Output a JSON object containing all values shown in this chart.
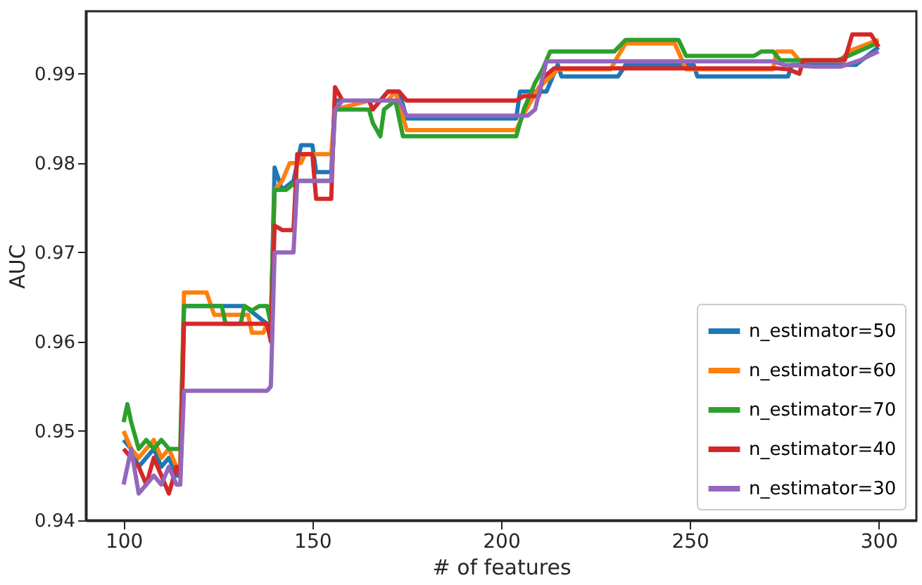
{
  "chart_data": {
    "type": "line",
    "xlabel": "# of features",
    "ylabel": "AUC",
    "xlim": [
      90,
      310
    ],
    "ylim": [
      0.94,
      0.997
    ],
    "xticks": [
      100,
      150,
      200,
      250,
      300
    ],
    "yticks": [
      0.94,
      0.95,
      0.96,
      0.97,
      0.98,
      0.99
    ],
    "grid": false,
    "legend": "bottom right",
    "marker": "none",
    "line_style": "solid",
    "series": [
      {
        "name": "n_estimator=50",
        "color": "#1f77b4",
        "x": [
          100,
          102,
          104,
          106,
          108,
          110,
          112,
          114,
          115,
          116,
          132,
          135,
          138,
          139,
          140,
          142,
          145,
          147,
          150,
          151,
          155,
          156,
          168,
          170,
          173,
          175,
          204,
          205,
          212,
          215,
          216,
          231,
          233,
          251,
          252,
          276,
          277,
          294,
          300
        ],
        "values": [
          0.949,
          0.948,
          0.946,
          0.947,
          0.948,
          0.946,
          0.947,
          0.945,
          0.945,
          0.964,
          0.964,
          0.963,
          0.962,
          0.962,
          0.9795,
          0.977,
          0.978,
          0.982,
          0.982,
          0.979,
          0.979,
          0.987,
          0.987,
          0.988,
          0.988,
          0.985,
          0.985,
          0.988,
          0.988,
          0.991,
          0.9897,
          0.9897,
          0.991,
          0.991,
          0.9897,
          0.9897,
          0.991,
          0.991,
          0.993
        ]
      },
      {
        "name": "n_estimator=60",
        "color": "#ff7f0e",
        "x": [
          100,
          102,
          104,
          106,
          108,
          110,
          112,
          114,
          115,
          116,
          122,
          124,
          133,
          134,
          137,
          138,
          139,
          140,
          142,
          144,
          147,
          148,
          155,
          156,
          165,
          170,
          172,
          175,
          204,
          206,
          210,
          214,
          215,
          229,
          231,
          233,
          246,
          249,
          272,
          273,
          277,
          279,
          290,
          292,
          300
        ],
        "values": [
          0.95,
          0.948,
          0.947,
          0.948,
          0.949,
          0.947,
          0.948,
          0.946,
          0.946,
          0.9655,
          0.9655,
          0.963,
          0.963,
          0.961,
          0.961,
          0.962,
          0.962,
          0.977,
          0.978,
          0.98,
          0.98,
          0.981,
          0.981,
          0.986,
          0.987,
          0.987,
          0.988,
          0.9837,
          0.9837,
          0.9855,
          0.9885,
          0.99,
          0.9905,
          0.9905,
          0.992,
          0.9934,
          0.9934,
          0.9905,
          0.9905,
          0.9925,
          0.9925,
          0.9915,
          0.9915,
          0.9925,
          0.9938
        ]
      },
      {
        "name": "n_estimator=70",
        "color": "#2ca02c",
        "x": [
          100,
          101,
          102,
          104,
          106,
          108,
          110,
          112,
          115,
          116,
          126,
          127,
          131,
          132,
          134,
          136,
          138,
          139,
          140,
          143,
          146,
          155,
          156,
          165,
          166,
          168,
          169,
          172,
          174,
          204,
          206,
          209,
          211,
          213,
          230,
          233,
          247,
          249,
          267,
          269,
          272,
          274,
          289,
          292,
          300
        ],
        "values": [
          0.951,
          0.953,
          0.951,
          0.948,
          0.949,
          0.948,
          0.949,
          0.948,
          0.948,
          0.964,
          0.964,
          0.962,
          0.962,
          0.964,
          0.9635,
          0.964,
          0.964,
          0.962,
          0.977,
          0.977,
          0.978,
          0.978,
          0.986,
          0.986,
          0.9845,
          0.983,
          0.986,
          0.987,
          0.983,
          0.983,
          0.986,
          0.989,
          0.9905,
          0.9925,
          0.9925,
          0.9938,
          0.9938,
          0.992,
          0.992,
          0.9925,
          0.9925,
          0.9915,
          0.9915,
          0.992,
          0.9935
        ]
      },
      {
        "name": "n_estimator=40",
        "color": "#d62728",
        "x": [
          100,
          102,
          104,
          106,
          108,
          110,
          112,
          114,
          115,
          116,
          138,
          139,
          140,
          142,
          145,
          146,
          150,
          151,
          155,
          156,
          158,
          165,
          166,
          170,
          173,
          175,
          204,
          206,
          210,
          211,
          214,
          273,
          276,
          279,
          280,
          291,
          293,
          298,
          300
        ],
        "values": [
          0.948,
          0.947,
          0.946,
          0.944,
          0.947,
          0.945,
          0.943,
          0.946,
          0.945,
          0.962,
          0.962,
          0.96,
          0.973,
          0.9725,
          0.9725,
          0.981,
          0.981,
          0.976,
          0.976,
          0.9885,
          0.987,
          0.987,
          0.986,
          0.988,
          0.988,
          0.987,
          0.987,
          0.9875,
          0.9875,
          0.9895,
          0.9906,
          0.9906,
          0.9905,
          0.99,
          0.9915,
          0.9915,
          0.9944,
          0.9944,
          0.993
        ]
      },
      {
        "name": "n_estimator=30",
        "color": "#9467bd",
        "x": [
          100,
          102,
          104,
          106,
          108,
          110,
          112,
          114,
          115,
          116,
          138,
          139,
          140,
          145,
          146,
          155,
          156,
          158,
          173,
          175,
          207,
          209,
          212,
          272,
          275,
          283,
          290,
          295,
          300
        ],
        "values": [
          0.944,
          0.948,
          0.943,
          0.944,
          0.945,
          0.944,
          0.946,
          0.944,
          0.944,
          0.9545,
          0.9545,
          0.955,
          0.97,
          0.97,
          0.978,
          0.978,
          0.986,
          0.987,
          0.987,
          0.9853,
          0.9853,
          0.986,
          0.9914,
          0.9914,
          0.991,
          0.9908,
          0.9908,
          0.9915,
          0.9925
        ]
      }
    ]
  }
}
